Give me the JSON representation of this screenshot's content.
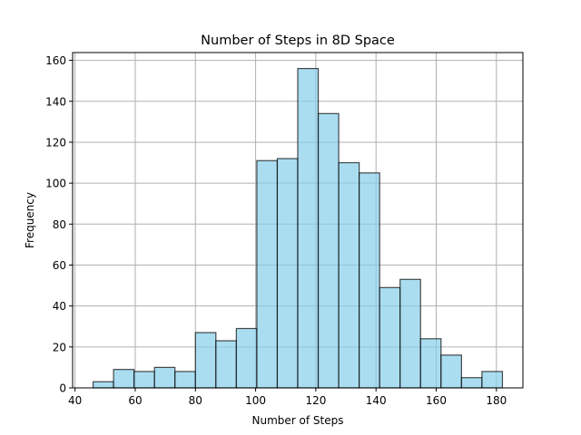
{
  "chart_data": {
    "type": "bar",
    "subtype": "histogram",
    "title": "Number of Steps in 8D Space",
    "xlabel": "Number of Steps",
    "ylabel": "Frequency",
    "bin_edges": [
      46,
      52.8,
      59.6,
      66.4,
      73.2,
      80,
      86.8,
      93.6,
      100.4,
      107.2,
      114,
      120.8,
      127.6,
      134.4,
      141.2,
      148,
      154.8,
      161.6,
      168.4,
      175.2,
      182
    ],
    "values": [
      3,
      9,
      8,
      10,
      8,
      27,
      23,
      29,
      111,
      112,
      156,
      134,
      110,
      105,
      49,
      53,
      24,
      16,
      5,
      8
    ],
    "xlim": [
      39.2,
      188.8
    ],
    "ylim": [
      0,
      163.8
    ],
    "x_ticks": [
      40,
      60,
      80,
      100,
      120,
      140,
      160,
      180
    ],
    "y_ticks": [
      0,
      20,
      40,
      60,
      80,
      100,
      120,
      140,
      160
    ],
    "grid": true,
    "colors": {
      "bar_fill": "#87ceeb",
      "bar_edge": "#000000",
      "grid": "#b0b0b0"
    }
  }
}
